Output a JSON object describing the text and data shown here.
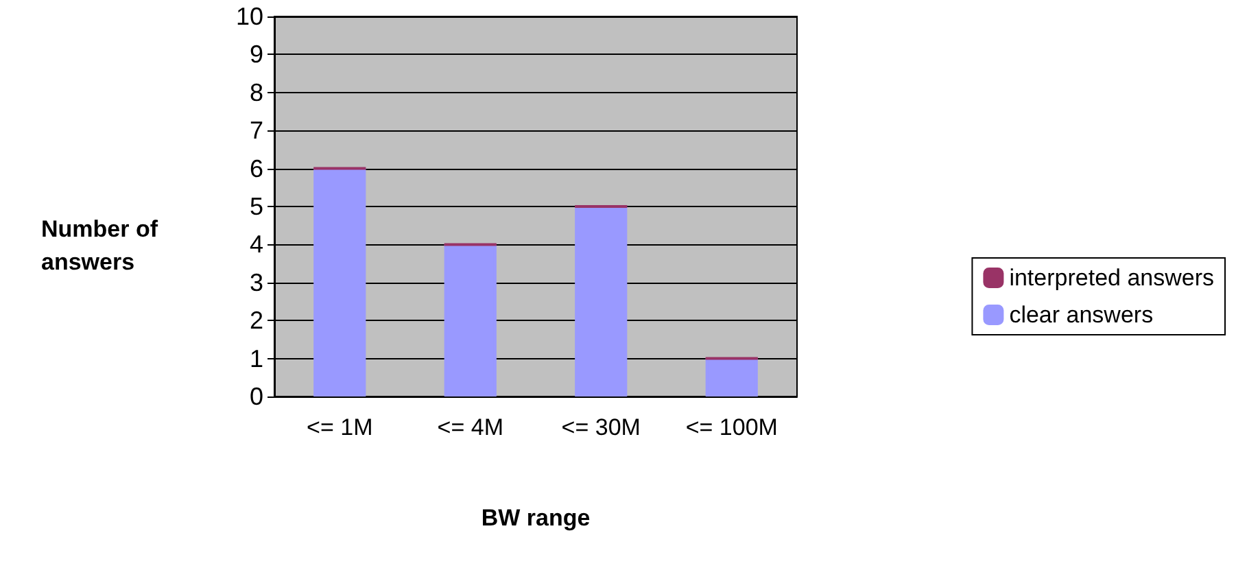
{
  "chart_data": {
    "type": "bar",
    "xlabel": "BW range",
    "ylabel": "Number of answers",
    "categories": [
      "<= 1M",
      "<= 4M",
      "<= 30M",
      "<= 100M"
    ],
    "stacked": true,
    "ylim": [
      0,
      10
    ],
    "yticks": [
      0,
      1,
      2,
      3,
      4,
      5,
      6,
      7,
      8,
      9,
      10
    ],
    "grid": "y",
    "legend": "right",
    "series": [
      {
        "name": "clear answers",
        "color": "#9999ff",
        "values": [
          6,
          4,
          5,
          1
        ]
      },
      {
        "name": "interpreted answers",
        "color": "#993366",
        "values": [
          0,
          0,
          0,
          0
        ]
      }
    ]
  }
}
